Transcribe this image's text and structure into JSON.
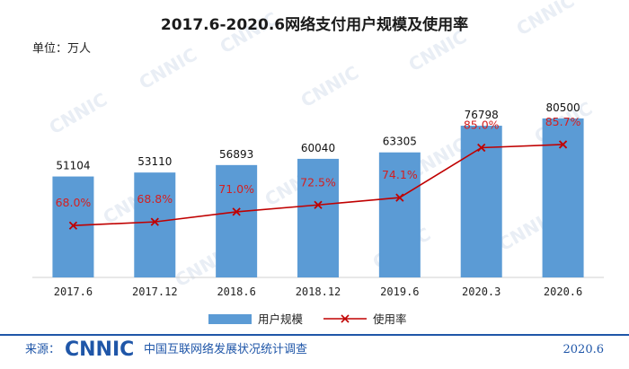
{
  "chart_data": {
    "type": "bar",
    "title": "2017.6-2020.6网络支付用户规模及使用率",
    "unit_label": "单位：万人",
    "categories": [
      "2017.6",
      "2017.12",
      "2018.6",
      "2018.12",
      "2019.6",
      "2020.3",
      "2020.6"
    ],
    "series": [
      {
        "name": "用户规模",
        "type": "bar",
        "color": "#5b9bd5",
        "values": [
          51104,
          53110,
          56893,
          60040,
          63305,
          76798,
          80500
        ]
      },
      {
        "name": "使用率",
        "type": "line",
        "color": "#c00000",
        "values": [
          68.0,
          68.8,
          71.0,
          72.5,
          74.1,
          85.0,
          85.7
        ],
        "labels": [
          "68.0%",
          "68.8%",
          "71.0%",
          "72.5%",
          "74.1%",
          "85.0%",
          "85.7%"
        ]
      }
    ],
    "ylim": [
      0,
      105000
    ],
    "y2lim": [
      0,
      100
    ],
    "legend": "bottom"
  },
  "watermark": "CNNIC",
  "footer": {
    "source_label": "来源：",
    "logo": "CNNIC",
    "org": "中国互联网络发展状况统计调查",
    "date": "2020.6"
  },
  "colors": {
    "bar": "#5b9bd5",
    "line": "#c00000",
    "footer": "#1f56a8"
  }
}
